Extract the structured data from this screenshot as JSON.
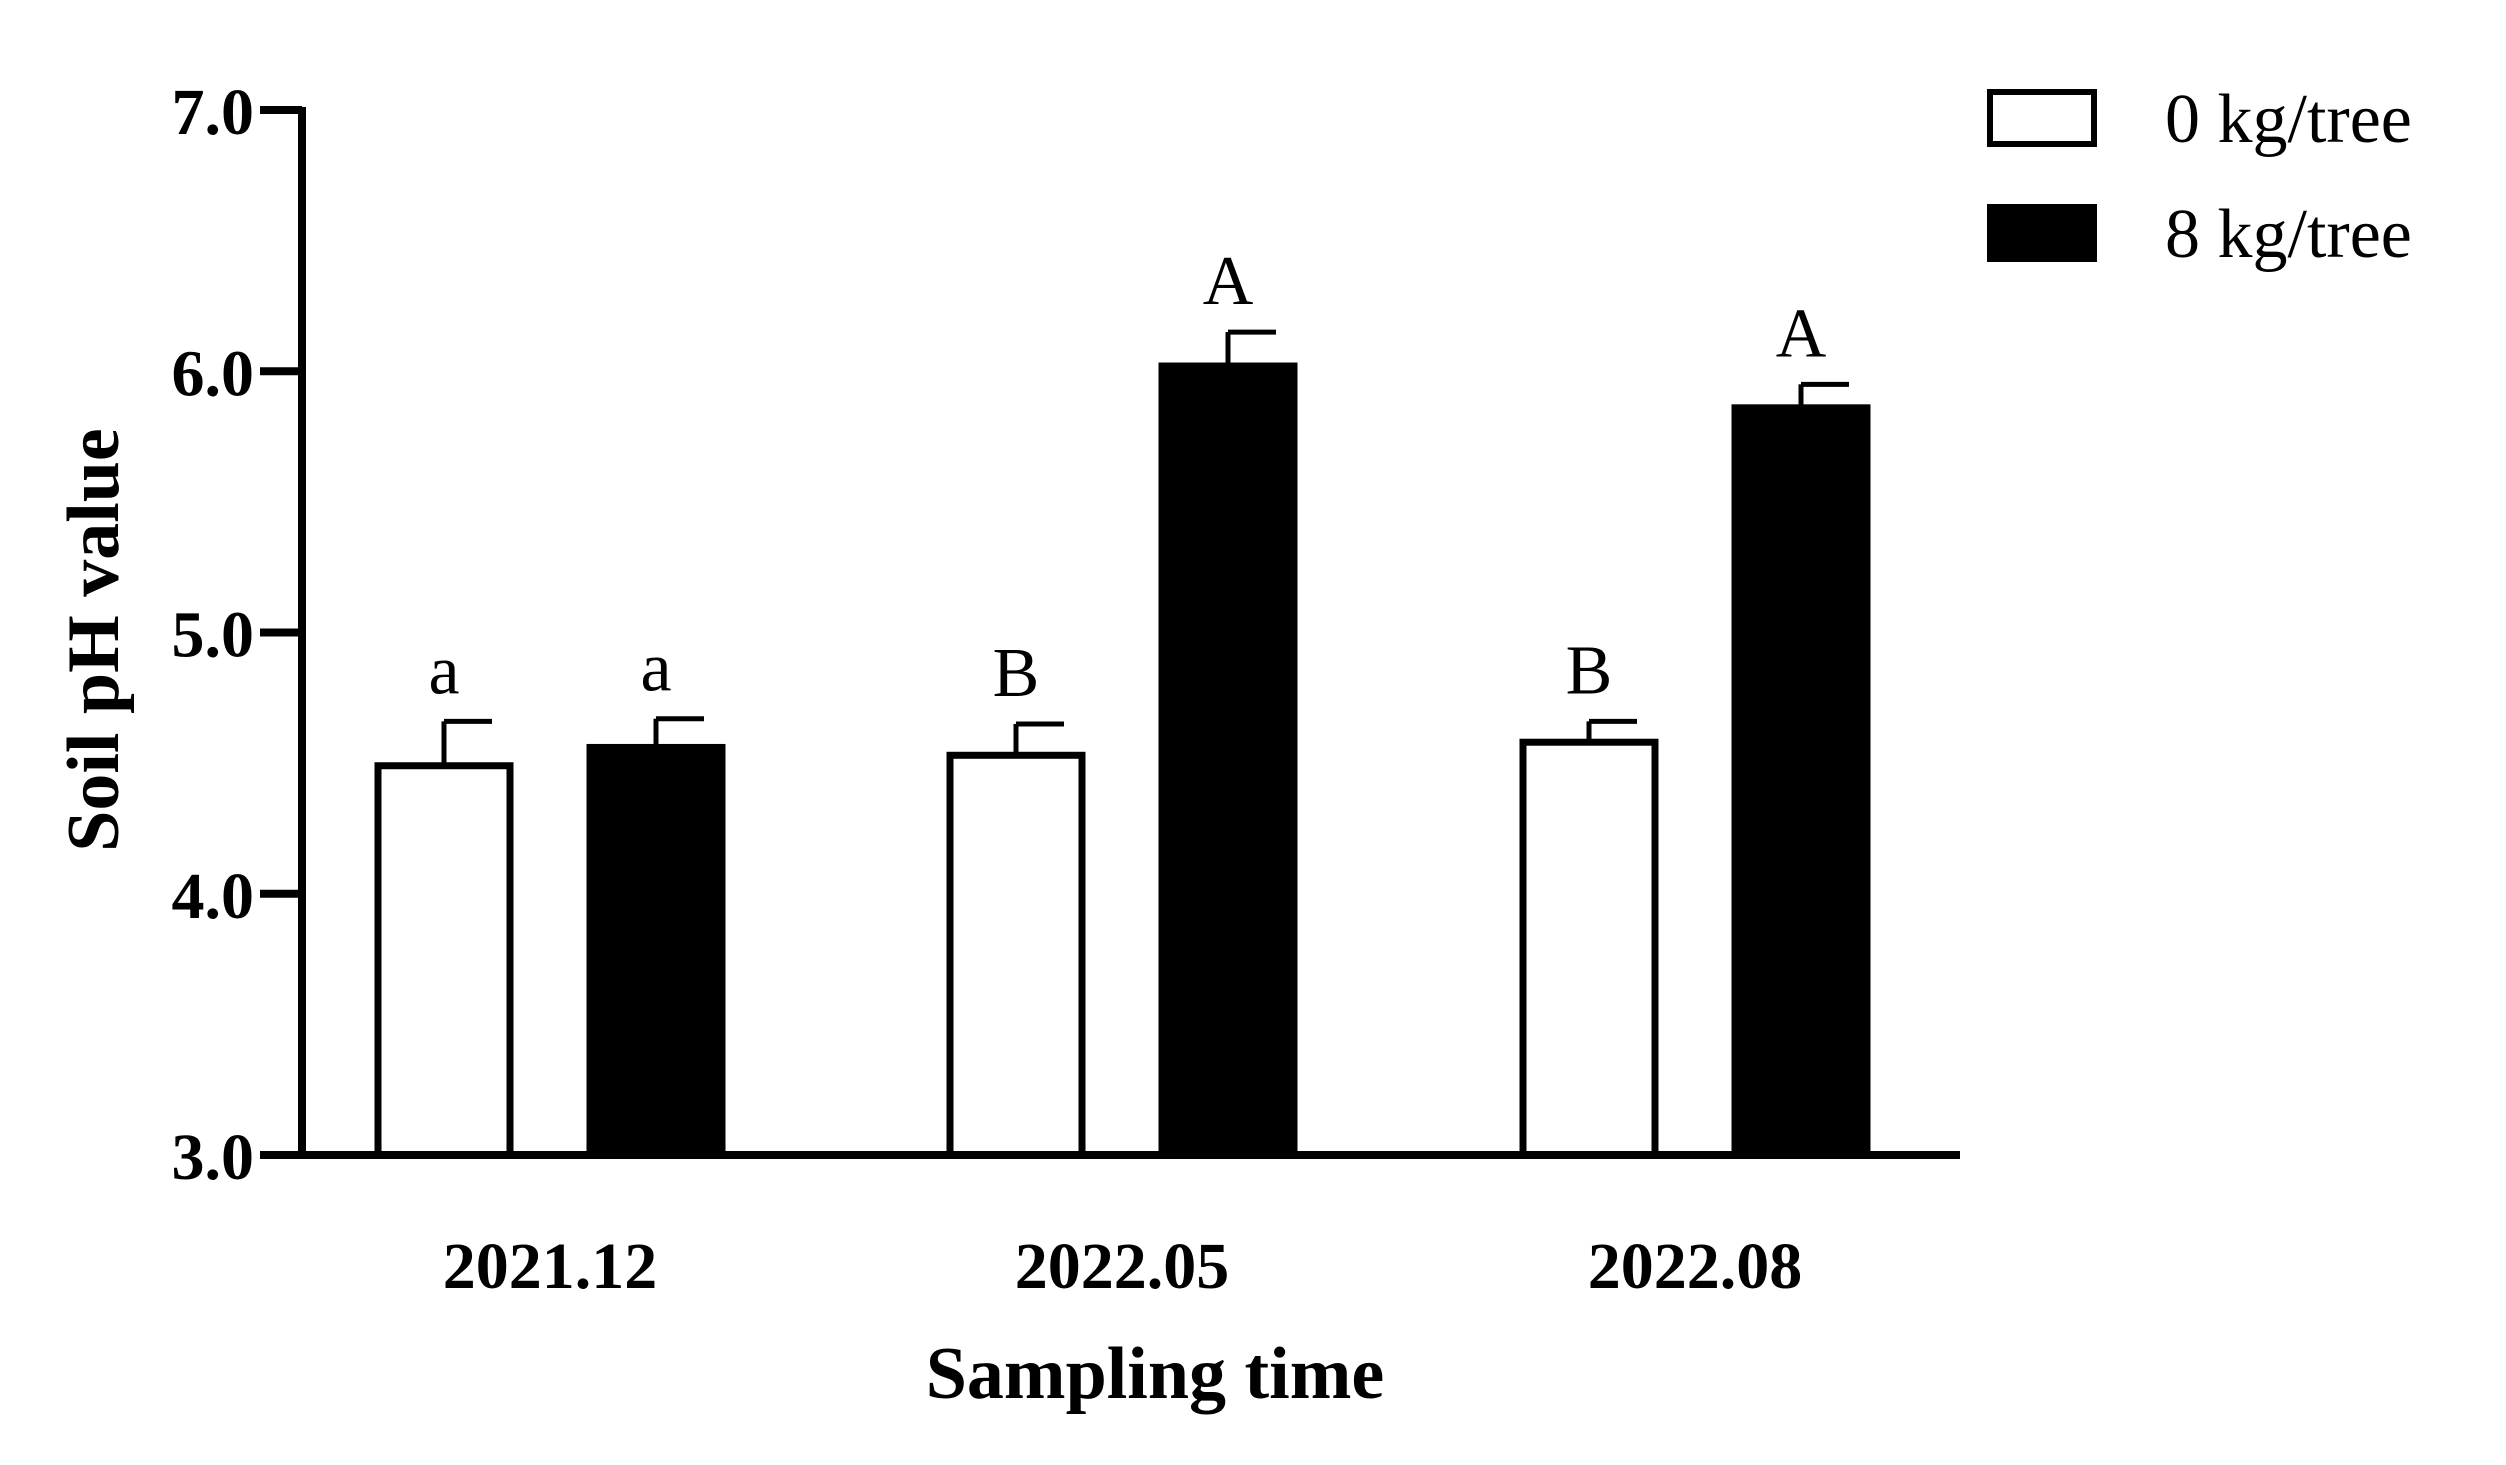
{
  "chart_data": {
    "type": "bar",
    "xlabel": "Sampling time",
    "ylabel": "Soil pH value",
    "categories": [
      "2021.12",
      "2022.05",
      "2022.08"
    ],
    "ylim": [
      3.0,
      7.0
    ],
    "yticks": [
      "3.0",
      "4.0",
      "5.0",
      "6.0",
      "7.0"
    ],
    "legend_position": "top-right",
    "series": [
      {
        "name": "0 kg/tree",
        "fill": "#ffffff",
        "values": [
          4.49,
          4.53,
          4.58
        ],
        "errors": [
          0.17,
          0.12,
          0.08
        ],
        "labels": [
          "a",
          "B",
          "B"
        ]
      },
      {
        "name": "8 kg/tree",
        "fill": "#000000",
        "values": [
          4.56,
          6.02,
          5.86
        ],
        "errors": [
          0.11,
          0.13,
          0.09
        ],
        "labels": [
          "a",
          "A",
          "A"
        ]
      }
    ]
  }
}
